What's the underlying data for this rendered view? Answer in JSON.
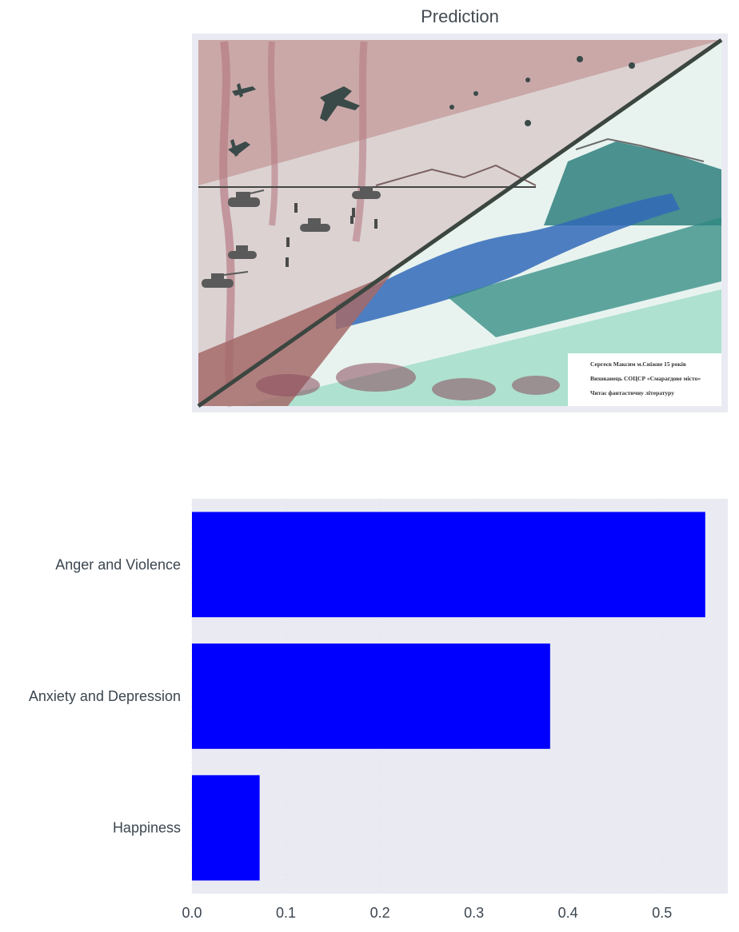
{
  "chart_title": "Prediction",
  "artwork": {
    "caption_lines": [
      "Сергеєв Максим  м.Сніжне 15 років",
      "Вихованець СОЦСР «Смарагдове місто»",
      "Читає   фантастичну літературу"
    ],
    "colors": {
      "sky_war": "#c9a0a0",
      "ground_war": "#d8cfcf",
      "water": "#2f6fb8",
      "forest": "#2f8a82",
      "meadow": "#8fd6c0",
      "diagonal": "#3c4640"
    },
    "icons": [
      "plane-icon",
      "tank-icon",
      "soldier-icon",
      "mountain-icon",
      "river-icon"
    ]
  },
  "chart_data": {
    "type": "bar",
    "orientation": "horizontal",
    "categories": [
      "Anger and Violence",
      "Anxiety and Depression",
      "Happiness"
    ],
    "values": [
      0.546,
      0.381,
      0.072
    ],
    "xlim": [
      0,
      0.57
    ],
    "xticks": [
      "0.0",
      "0.1",
      "0.2",
      "0.3",
      "0.4",
      "0.5"
    ],
    "bar_color": "#0000ff",
    "background": "#eaeaf2",
    "grid": true
  }
}
